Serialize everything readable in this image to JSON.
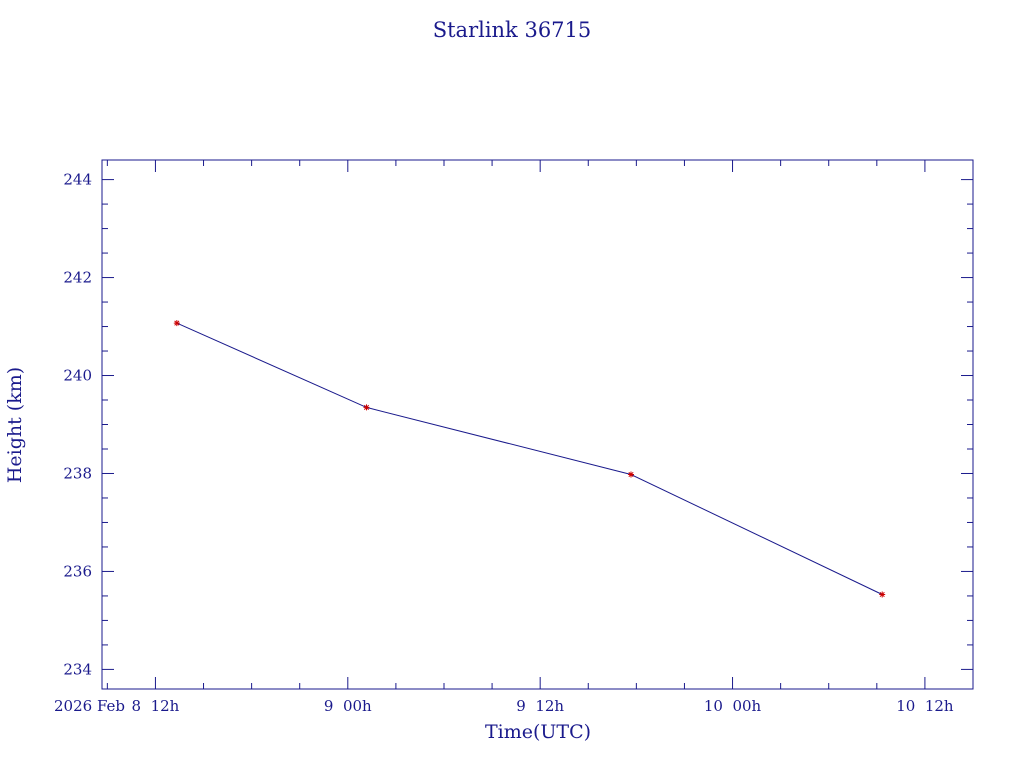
{
  "chart_data": {
    "type": "line",
    "title": "Starlink 36715",
    "xlabel": "Time(UTC)",
    "ylabel": "Height (km)",
    "x_axis_origin_label": "2026 Feb",
    "x_tick_labels": [
      "8  12h",
      "9  00h",
      "9  12h",
      "10  00h",
      "10  12h"
    ],
    "x_tick_values": [
      "2026-02-08T12:00Z",
      "2026-02-09T00:00Z",
      "2026-02-09T12:00Z",
      "2026-02-10T00:00Z",
      "2026-02-10T12:00Z"
    ],
    "xlim": [
      "2026-02-08T08:40Z",
      "2026-02-10T15:00Z"
    ],
    "y_tick_labels": [
      "234",
      "236",
      "238",
      "240",
      "242",
      "244"
    ],
    "ylim": [
      233.6,
      244.4
    ],
    "grid": false,
    "series": [
      {
        "x": [
          "2026-02-08T13:20Z",
          "2026-02-09T01:10Z",
          "2026-02-09T17:40Z",
          "2026-02-10T09:20Z"
        ],
        "y": [
          241.07,
          239.35,
          237.98,
          235.53
        ],
        "line_color": "#1a1a8c",
        "marker_color": "#cc0000",
        "marker": "star"
      }
    ]
  },
  "colors": {
    "axis": "#1a1a8c",
    "line": "#1a1a8c",
    "marker": "#cc0000"
  }
}
